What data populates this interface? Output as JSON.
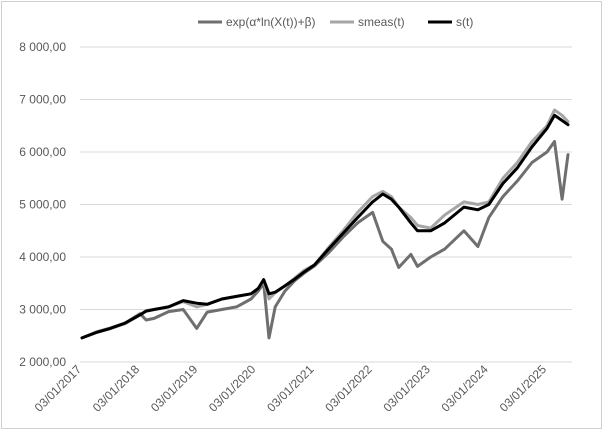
{
  "chart_data": {
    "type": "line",
    "title": "",
    "xlabel": "",
    "ylabel": "",
    "ylim": [
      2000,
      8000
    ],
    "y_ticks": [
      "2 000,00",
      "3 000,00",
      "4 000,00",
      "5 000,00",
      "6 000,00",
      "7 000,00",
      "8 000,00"
    ],
    "x_ticks": [
      "03/01/2017",
      "03/01/2018",
      "03/01/2019",
      "03/01/2020",
      "03/01/2021",
      "03/01/2022",
      "03/01/2023",
      "03/01/2024",
      "03/01/2025"
    ],
    "grid": "horizontal",
    "legend_position": "top",
    "x": [
      "2017-01-03",
      "2017-04-01",
      "2017-07-01",
      "2017-10-01",
      "2018-01-03",
      "2018-02-10",
      "2018-04-01",
      "2018-07-01",
      "2018-10-01",
      "2018-12-25",
      "2019-03-01",
      "2019-06-01",
      "2019-09-01",
      "2019-12-01",
      "2020-01-15",
      "2020-02-19",
      "2020-03-23",
      "2020-05-01",
      "2020-07-01",
      "2020-09-01",
      "2020-11-01",
      "2021-01-03",
      "2021-04-01",
      "2021-07-01",
      "2021-10-01",
      "2022-01-03",
      "2022-03-08",
      "2022-05-01",
      "2022-06-16",
      "2022-09-01",
      "2022-10-12",
      "2023-01-03",
      "2023-04-01",
      "2023-07-31",
      "2023-10-27",
      "2024-01-03",
      "2024-04-01",
      "2024-07-01",
      "2024-10-01",
      "2025-01-03",
      "2025-02-19",
      "2025-04-08",
      "2025-05-15"
    ],
    "series": [
      {
        "name": "exp(α*ln(X(t))+β)",
        "color": "#6f6f6f",
        "values": [
          2460,
          2570,
          2650,
          2740,
          2920,
          2800,
          2830,
          2960,
          3000,
          2640,
          2950,
          3000,
          3050,
          3200,
          3350,
          3500,
          2460,
          3050,
          3350,
          3550,
          3700,
          3830,
          4080,
          4380,
          4650,
          4850,
          4300,
          4150,
          3800,
          4050,
          3820,
          4000,
          4150,
          4500,
          4200,
          4750,
          5150,
          5450,
          5800,
          6000,
          6200,
          5100,
          5950
        ]
      },
      {
        "name": "smeas(t)",
        "color": "#a6a6a6",
        "values": [
          2460,
          2560,
          2640,
          2730,
          2900,
          2980,
          3000,
          3050,
          3150,
          3050,
          3100,
          3200,
          3250,
          3300,
          3400,
          3550,
          3200,
          3320,
          3450,
          3600,
          3750,
          3850,
          4180,
          4500,
          4850,
          5150,
          5250,
          5150,
          4950,
          4750,
          4600,
          4550,
          4800,
          5050,
          5000,
          5050,
          5500,
          5800,
          6200,
          6500,
          6800,
          6700,
          6580
        ]
      },
      {
        "name": "s(t)",
        "color": "#000000",
        "values": [
          2460,
          2560,
          2640,
          2740,
          2900,
          2970,
          3000,
          3050,
          3170,
          3120,
          3100,
          3200,
          3250,
          3300,
          3400,
          3570,
          3300,
          3330,
          3450,
          3580,
          3720,
          3850,
          4150,
          4450,
          4750,
          5050,
          5200,
          5100,
          4950,
          4650,
          4500,
          4500,
          4650,
          4950,
          4900,
          5000,
          5400,
          5700,
          6100,
          6450,
          6700,
          6600,
          6520
        ]
      }
    ]
  }
}
